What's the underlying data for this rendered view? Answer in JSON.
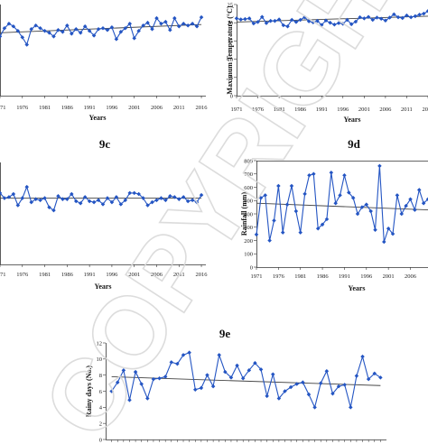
{
  "watermark": "COPYRIGHT",
  "chart_data": [
    {
      "id": "9a",
      "label": "",
      "type": "line",
      "xlabel": "Years",
      "ylabel": "",
      "x_ticks": [
        "1971",
        "1976",
        "1981",
        "1986",
        "1991",
        "1996",
        "2001",
        "2006",
        "2011",
        "2016"
      ],
      "y_ticks": [],
      "ylim": [
        0,
        10
      ],
      "x": [
        1971,
        1972,
        1973,
        1974,
        1975,
        1976,
        1977,
        1978,
        1979,
        1980,
        1981,
        1982,
        1983,
        1984,
        1985,
        1986,
        1987,
        1988,
        1989,
        1990,
        1991,
        1992,
        1993,
        1994,
        1995,
        1996,
        1997,
        1998,
        1999,
        2000,
        2001,
        2002,
        2003,
        2004,
        2005,
        2006,
        2007,
        2008,
        2009,
        2010,
        2011,
        2012,
        2013,
        2014,
        2015,
        2016
      ],
      "values": [
        6.5,
        7.4,
        7.9,
        7.6,
        7.1,
        6.4,
        5.6,
        7.3,
        7.7,
        7.4,
        7.1,
        6.9,
        6.5,
        7.2,
        7.0,
        7.7,
        6.8,
        7.3,
        6.9,
        7.6,
        7.1,
        6.6,
        7.3,
        7.4,
        7.2,
        7.5,
        6.2,
        7.0,
        7.4,
        7.9,
        6.3,
        7.1,
        7.7,
        8.0,
        7.3,
        8.5,
        7.9,
        8.1,
        7.2,
        8.5,
        7.6,
        7.9,
        7.7,
        7.9,
        7.6,
        8.6
      ],
      "trend": [
        6.9,
        7.8
      ]
    },
    {
      "id": "9b",
      "label": "",
      "type": "line",
      "xlabel": "Years",
      "ylabel": "Maximum Temperature (°C)",
      "x_ticks": [
        "1971",
        "1976",
        "1981",
        "1986",
        "1991",
        "1996",
        "2001",
        "2006",
        "2011",
        "2016"
      ],
      "y_ticks": [
        "0",
        "5",
        "10",
        "15",
        "20",
        "25"
      ],
      "ylim": [
        0,
        25
      ],
      "x": [
        1971,
        1972,
        1973,
        1974,
        1975,
        1976,
        1977,
        1978,
        1979,
        1980,
        1981,
        1982,
        1983,
        1984,
        1985,
        1986,
        1987,
        1988,
        1989,
        1990,
        1991,
        1992,
        1993,
        1994,
        1995,
        1996,
        1997,
        1998,
        1999,
        2000,
        2001,
        2002,
        2003,
        2004,
        2005,
        2006,
        2007,
        2008,
        2009,
        2010,
        2011,
        2012,
        2013,
        2014,
        2015,
        2016
      ],
      "values": [
        21.2,
        20.9,
        21.0,
        21.2,
        19.8,
        20.2,
        21.6,
        19.9,
        20.5,
        20.5,
        20.9,
        19.3,
        19.0,
        20.8,
        20.2,
        20.8,
        21.5,
        20.4,
        20.1,
        20.5,
        19.4,
        20.6,
        20.0,
        19.5,
        19.9,
        19.7,
        20.8,
        19.6,
        20.3,
        21.5,
        21.2,
        21.6,
        20.8,
        21.4,
        21.1,
        20.6,
        21.4,
        22.3,
        21.5,
        21.3,
        22.0,
        21.5,
        21.8,
        22.2,
        22.5,
        23.2
      ],
      "trend": [
        20.2,
        21.8
      ]
    },
    {
      "id": "9c",
      "label": "9c",
      "type": "line",
      "xlabel": "Years",
      "ylabel": "",
      "x_ticks": [
        "1971",
        "1976",
        "1981",
        "1986",
        "1991",
        "1996",
        "2001",
        "2006",
        "2011",
        "2016"
      ],
      "y_ticks": [],
      "ylim": [
        0,
        10
      ],
      "x": [
        1971,
        1972,
        1973,
        1974,
        1975,
        1976,
        1977,
        1978,
        1979,
        1980,
        1981,
        1982,
        1983,
        1984,
        1985,
        1986,
        1987,
        1988,
        1989,
        1990,
        1991,
        1992,
        1993,
        1994,
        1995,
        1996,
        1997,
        1998,
        1999,
        2000,
        2001,
        2002,
        2003,
        2004,
        2005,
        2006,
        2007,
        2008,
        2009,
        2010,
        2011,
        2012,
        2013,
        2014,
        2015,
        2016
      ],
      "values": [
        7.0,
        6.5,
        6.6,
        6.9,
        5.8,
        6.5,
        7.6,
        6.1,
        6.4,
        6.3,
        6.5,
        5.6,
        5.3,
        6.7,
        6.4,
        6.4,
        6.9,
        6.2,
        6.0,
        6.6,
        6.2,
        6.1,
        6.3,
        5.9,
        6.5,
        6.1,
        6.6,
        5.9,
        6.3,
        7.0,
        7.0,
        6.9,
        6.5,
        5.8,
        6.1,
        6.3,
        6.5,
        6.3,
        6.7,
        6.6,
        6.4,
        6.6,
        6.2,
        6.3,
        6.1,
        6.8
      ],
      "trend": [
        6.5,
        6.5
      ]
    },
    {
      "id": "9d",
      "label": "9d",
      "type": "line",
      "xlabel": "Years",
      "ylabel": "Rainfall (mm)",
      "x_ticks": [
        "1971",
        "1976",
        "1981",
        "1986",
        "1991",
        "1996",
        "2001",
        "2006"
      ],
      "y_ticks": [
        "0",
        "100",
        "200",
        "300",
        "400",
        "500",
        "600",
        "700",
        "800"
      ],
      "ylim": [
        0,
        800
      ],
      "x": [
        1971,
        1972,
        1973,
        1974,
        1975,
        1976,
        1977,
        1978,
        1979,
        1980,
        1981,
        1982,
        1983,
        1984,
        1985,
        1986,
        1987,
        1988,
        1989,
        1990,
        1991,
        1992,
        1993,
        1994,
        1995,
        1996,
        1997,
        1998,
        1999,
        2000,
        2001,
        2002,
        2003,
        2004,
        2005,
        2006,
        2007,
        2008,
        2009,
        2010
      ],
      "values": [
        245,
        520,
        540,
        200,
        350,
        610,
        260,
        470,
        610,
        420,
        260,
        550,
        690,
        700,
        290,
        320,
        360,
        710,
        480,
        540,
        690,
        560,
        520,
        400,
        450,
        470,
        420,
        280,
        760,
        190,
        290,
        250,
        540,
        400,
        460,
        510,
        430,
        580,
        480,
        510
      ],
      "trend": [
        480,
        430
      ]
    },
    {
      "id": "9e",
      "label": "9e",
      "type": "line",
      "xlabel": "",
      "ylabel": "Rainy days (No.)",
      "x_ticks": [],
      "y_ticks": [
        "0",
        "2",
        "4",
        "6",
        "8",
        "10",
        "12"
      ],
      "ylim": [
        0,
        12
      ],
      "x": [
        1971,
        1972,
        1973,
        1974,
        1975,
        1976,
        1977,
        1978,
        1979,
        1980,
        1981,
        1982,
        1983,
        1984,
        1985,
        1986,
        1987,
        1988,
        1989,
        1990,
        1991,
        1992,
        1993,
        1994,
        1995,
        1996,
        1997,
        1998,
        1999,
        2000,
        2001,
        2002,
        2003,
        2004,
        2005,
        2006,
        2007,
        2008,
        2009,
        2010,
        2011,
        2012,
        2013,
        2014,
        2015,
        2016
      ],
      "values": [
        6.0,
        7.1,
        8.6,
        4.9,
        8.4,
        6.9,
        5.1,
        7.5,
        7.6,
        7.8,
        9.6,
        9.4,
        10.5,
        10.8,
        6.2,
        6.4,
        8.0,
        6.6,
        10.5,
        8.4,
        7.7,
        9.2,
        7.6,
        8.6,
        9.5,
        8.7,
        5.4,
        8.1,
        5.1,
        6.0,
        6.5,
        6.9,
        7.1,
        5.6,
        4.0,
        7.0,
        8.5,
        5.7,
        6.6,
        6.8,
        4.0,
        7.9,
        10.3,
        7.5,
        8.2,
        7.7
      ],
      "trend": [
        7.8,
        6.7
      ]
    }
  ]
}
